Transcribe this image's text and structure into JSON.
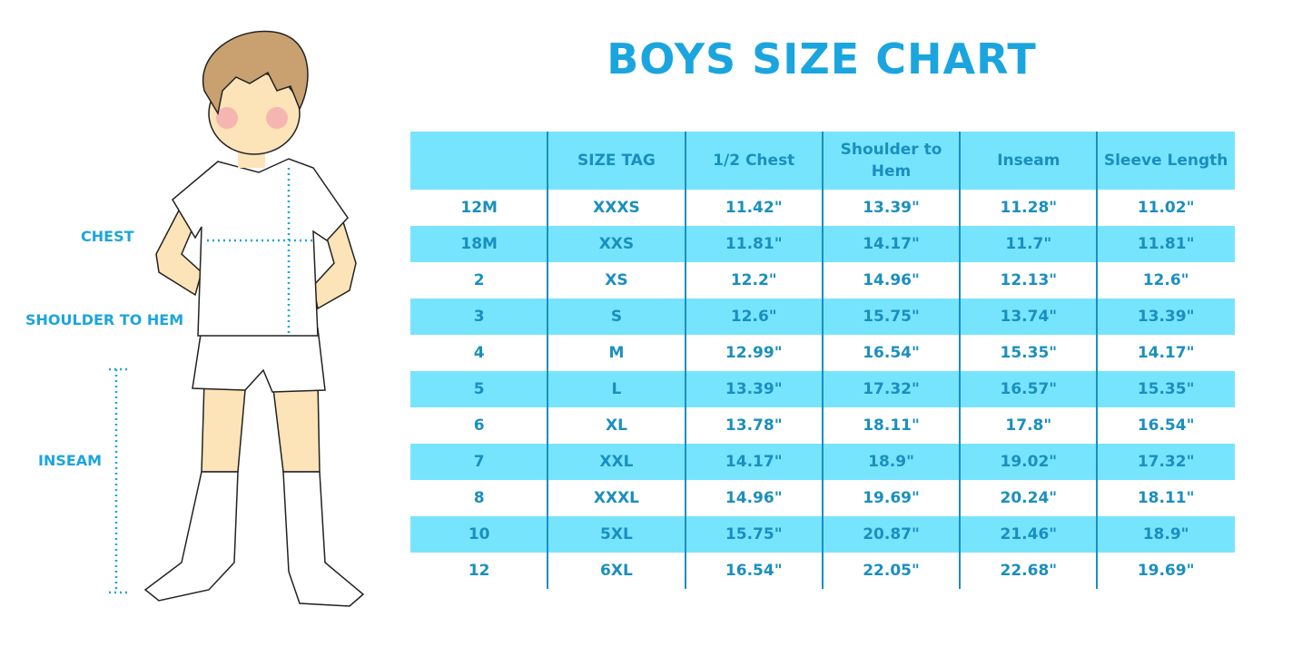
{
  "title": "BOYS SIZE CHART",
  "labels": {
    "chest": "CHEST",
    "shoulder_to_hem": "SHOULDER TO HEM",
    "inseam": "INSEAM"
  },
  "colors": {
    "accent": "#1ba5de",
    "row_fill": "#77e4fd",
    "text": "#1a8fbf"
  },
  "table": {
    "headers": [
      "",
      "SIZE TAG",
      "1/2 Chest",
      "Shoulder to Hem",
      "Inseam",
      "Sleeve Length"
    ],
    "rows": [
      [
        "12M",
        "XXXS",
        "11.42\"",
        "13.39\"",
        "11.28\"",
        "11.02\""
      ],
      [
        "18M",
        "XXS",
        "11.81\"",
        "14.17\"",
        "11.7\"",
        "11.81\""
      ],
      [
        "2",
        "XS",
        "12.2\"",
        "14.96\"",
        "12.13\"",
        "12.6\""
      ],
      [
        "3",
        "S",
        "12.6\"",
        "15.75\"",
        "13.74\"",
        "13.39\""
      ],
      [
        "4",
        "M",
        "12.99\"",
        "16.54\"",
        "15.35\"",
        "14.17\""
      ],
      [
        "5",
        "L",
        "13.39\"",
        "17.32\"",
        "16.57\"",
        "15.35\""
      ],
      [
        "6",
        "XL",
        "13.78\"",
        "18.11\"",
        "17.8\"",
        "16.54\""
      ],
      [
        "7",
        "XXL",
        "14.17\"",
        "18.9\"",
        "19.02\"",
        "17.32\""
      ],
      [
        "8",
        "XXXL",
        "14.96\"",
        "19.69\"",
        "20.24\"",
        "18.11\""
      ],
      [
        "10",
        "5XL",
        "15.75\"",
        "20.87\"",
        "21.46\"",
        "18.9\""
      ],
      [
        "12",
        "6XL",
        "16.54\"",
        "22.05\"",
        "22.68\"",
        "19.69\""
      ]
    ]
  }
}
